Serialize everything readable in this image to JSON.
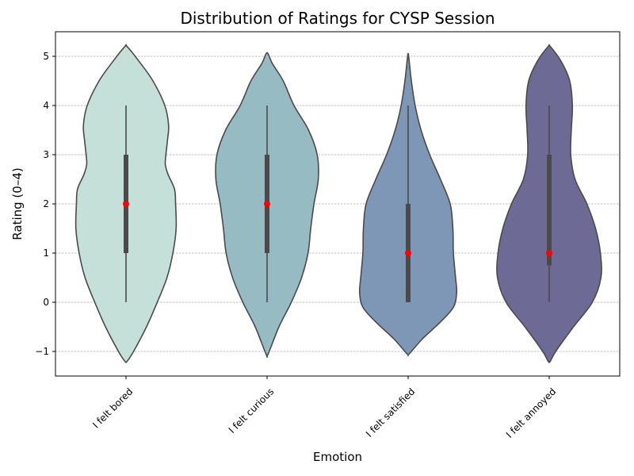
{
  "chart_data": {
    "type": "violin",
    "title": "Distribution of Ratings for CYSP Session",
    "xlabel": "Emotion",
    "ylabel": "Rating (0–4)",
    "ylim": [
      -1.5,
      5.5
    ],
    "yticks": [
      -1,
      0,
      1,
      2,
      3,
      4,
      5
    ],
    "ytick_labels": [
      "−1",
      "0",
      "1",
      "2",
      "3",
      "4",
      "5"
    ],
    "grid": "horizontal dashed",
    "categories": [
      "I felt bored",
      "I felt curious",
      "I felt satisfied",
      "I felt annoyed"
    ],
    "colors": [
      "#c5e0d8",
      "#97bbc3",
      "#7f97b7",
      "#6e6a96"
    ],
    "median_color": "#ff0000",
    "series": [
      {
        "category": "I felt bored",
        "median": 2,
        "q1": 1,
        "q3": 3,
        "whisker_low": 0,
        "whisker_high": 4,
        "kde_min": -1.2,
        "kde_max": 5.2,
        "density": [
          [
            -1.2,
            0.02
          ],
          [
            -1.0,
            0.14
          ],
          [
            -0.5,
            0.38
          ],
          [
            0.0,
            0.58
          ],
          [
            0.5,
            0.76
          ],
          [
            1.0,
            0.87
          ],
          [
            1.5,
            0.93
          ],
          [
            2.0,
            0.92
          ],
          [
            2.3,
            0.9
          ],
          [
            2.6,
            0.78
          ],
          [
            2.8,
            0.73
          ],
          [
            3.0,
            0.74
          ],
          [
            3.3,
            0.77
          ],
          [
            3.6,
            0.79
          ],
          [
            4.0,
            0.72
          ],
          [
            4.5,
            0.5
          ],
          [
            4.9,
            0.24
          ],
          [
            5.2,
            0.02
          ]
        ]
      },
      {
        "category": "I felt curious",
        "median": 2,
        "q1": 1,
        "q3": 3,
        "whisker_low": 0,
        "whisker_high": 4,
        "kde_min": -1.05,
        "kde_max": 5.05,
        "density": [
          [
            -1.05,
            0.02
          ],
          [
            -0.5,
            0.22
          ],
          [
            0.0,
            0.45
          ],
          [
            0.5,
            0.64
          ],
          [
            1.0,
            0.76
          ],
          [
            1.5,
            0.81
          ],
          [
            2.0,
            0.87
          ],
          [
            2.5,
            0.95
          ],
          [
            3.0,
            0.93
          ],
          [
            3.5,
            0.77
          ],
          [
            4.0,
            0.5
          ],
          [
            4.5,
            0.3
          ],
          [
            4.85,
            0.1
          ],
          [
            5.05,
            0.02
          ]
        ]
      },
      {
        "category": "I felt satisfied",
        "median": 1,
        "q1": 0,
        "q3": 2,
        "whisker_low": 0,
        "whisker_high": 4,
        "kde_min": -1.05,
        "kde_max": 5.05,
        "density": [
          [
            -1.05,
            0.02
          ],
          [
            -0.75,
            0.26
          ],
          [
            -0.4,
            0.6
          ],
          [
            -0.1,
            0.84
          ],
          [
            0.2,
            0.9
          ],
          [
            0.5,
            0.88
          ],
          [
            1.0,
            0.84
          ],
          [
            1.5,
            0.83
          ],
          [
            2.0,
            0.78
          ],
          [
            2.5,
            0.6
          ],
          [
            3.0,
            0.4
          ],
          [
            3.5,
            0.24
          ],
          [
            4.0,
            0.13
          ],
          [
            4.5,
            0.06
          ],
          [
            5.0,
            0.01
          ],
          [
            5.05,
            0.0
          ]
        ]
      },
      {
        "category": "I felt annoyed",
        "median": 1,
        "q1": 0.75,
        "q3": 3,
        "whisker_low": 0,
        "whisker_high": 4,
        "kde_min": -1.2,
        "kde_max": 5.2,
        "density": [
          [
            -1.2,
            0.02
          ],
          [
            -1.0,
            0.12
          ],
          [
            -0.5,
            0.45
          ],
          [
            0.0,
            0.8
          ],
          [
            0.5,
            0.96
          ],
          [
            1.0,
            0.95
          ],
          [
            1.5,
            0.86
          ],
          [
            2.0,
            0.7
          ],
          [
            2.5,
            0.48
          ],
          [
            3.0,
            0.4
          ],
          [
            3.5,
            0.41
          ],
          [
            4.0,
            0.43
          ],
          [
            4.5,
            0.38
          ],
          [
            4.9,
            0.22
          ],
          [
            5.2,
            0.02
          ]
        ]
      }
    ]
  }
}
